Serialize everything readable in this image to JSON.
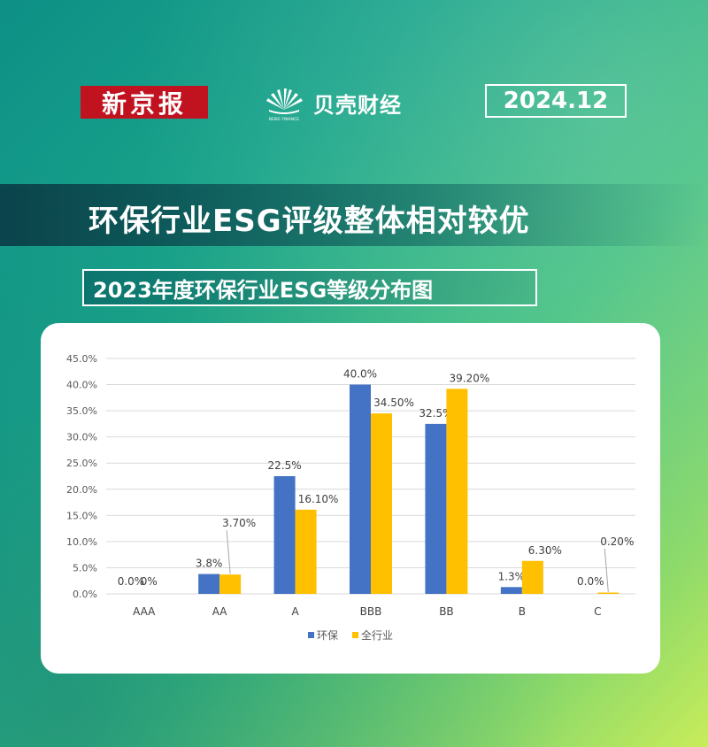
{
  "header": {
    "brand_left": "新京报",
    "brand_right": "贝壳财经",
    "brand_right_small": "BEIKE FINANCE",
    "date": "2024.12"
  },
  "headline": "环保行业ESG评级整体相对较优",
  "subtitle": "2023年度环保行业ESG等级分布图",
  "colors": {
    "series1": "#4472c4",
    "series2": "#ffc000",
    "brand_red": "#c1121f"
  },
  "chart_data": {
    "type": "bar",
    "categories": [
      "AAA",
      "AA",
      "A",
      "BBB",
      "BB",
      "B",
      "C"
    ],
    "series": [
      {
        "name": "环保",
        "values": [
          0.0,
          3.8,
          22.5,
          40.0,
          32.5,
          1.3,
          0.0
        ],
        "labels": [
          "0.0%",
          "3.8%",
          "22.5%",
          "40.0%",
          "32.5%",
          "1.3%",
          "0.0%"
        ]
      },
      {
        "name": "全行业",
        "values": [
          0.0,
          3.7,
          16.1,
          34.5,
          39.2,
          6.3,
          0.2
        ],
        "labels": [
          "0%",
          "3.70%",
          "16.10%",
          "34.50%",
          "39.20%",
          "6.30%",
          "0.20%"
        ]
      }
    ],
    "ylim": [
      0,
      45
    ],
    "yticks": [
      "0.0%",
      "5.0%",
      "10.0%",
      "15.0%",
      "20.0%",
      "25.0%",
      "30.0%",
      "35.0%",
      "40.0%",
      "45.0%"
    ],
    "grid": true,
    "legend": "bottom"
  }
}
